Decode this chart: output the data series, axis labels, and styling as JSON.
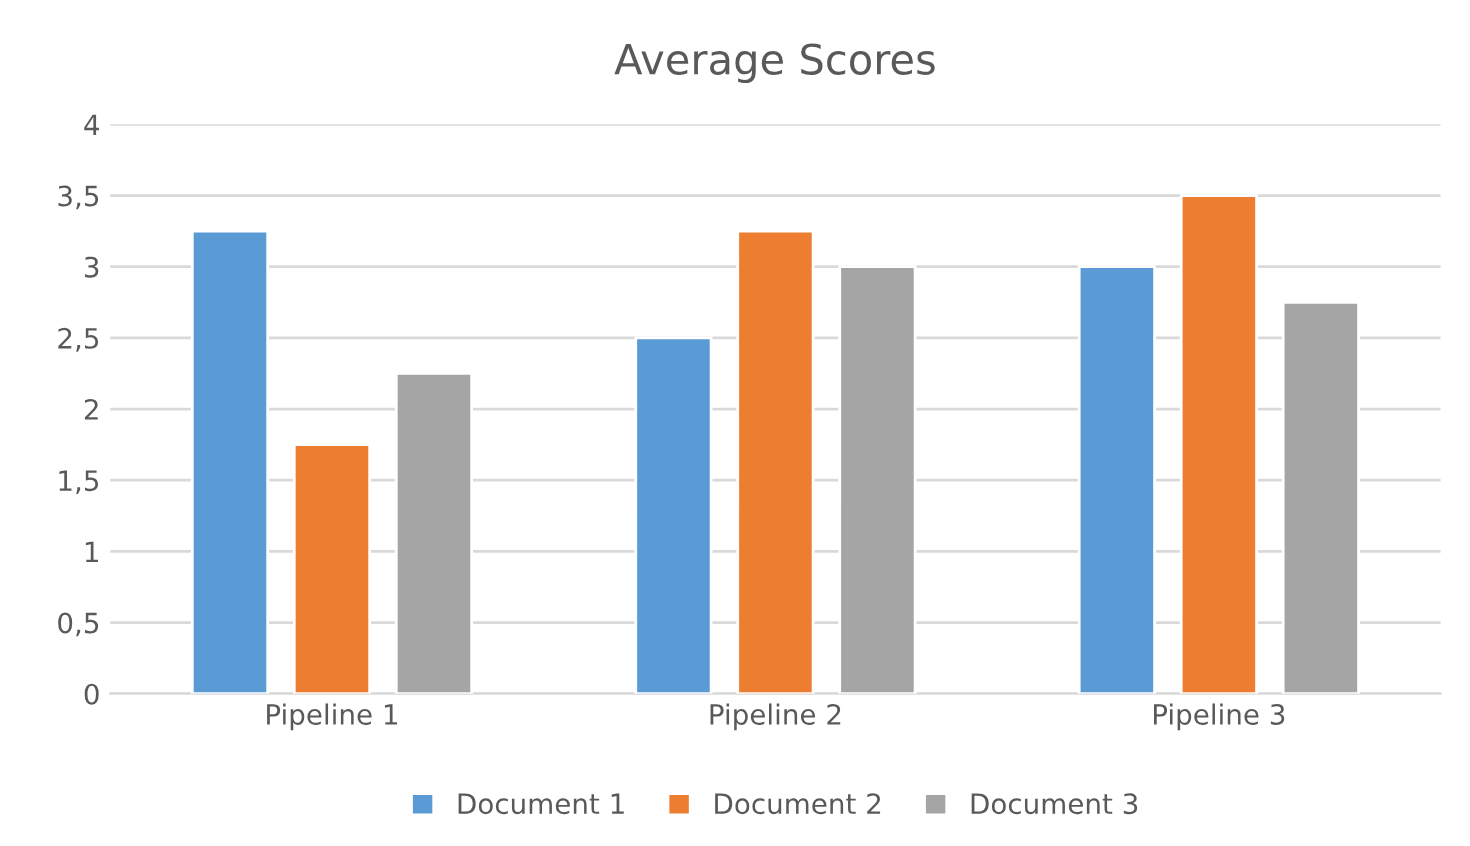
{
  "chart_data": {
    "type": "bar",
    "title": "Average Scores",
    "categories": [
      "Pipeline 1",
      "Pipeline 2",
      "Pipeline 3"
    ],
    "series": [
      {
        "name": "Document 1",
        "color": "#5b9bd5",
        "values": [
          3.25,
          2.5,
          3.0
        ]
      },
      {
        "name": "Document 2",
        "color": "#ed7d31",
        "values": [
          1.75,
          3.25,
          3.5
        ]
      },
      {
        "name": "Document 3",
        "color": "#a5a5a5",
        "values": [
          2.25,
          3.0,
          2.75
        ]
      }
    ],
    "ylim": [
      0,
      4
    ],
    "yticks": [
      0,
      {
        "value": 0.5,
        "label": "0,5"
      },
      1,
      {
        "value": 1.5,
        "label": "1,5"
      },
      2,
      {
        "value": 2.5,
        "label": "2,5"
      },
      3,
      {
        "value": 3.5,
        "label": "3,5"
      },
      4
    ],
    "grid": "y",
    "legend": "bottom"
  }
}
